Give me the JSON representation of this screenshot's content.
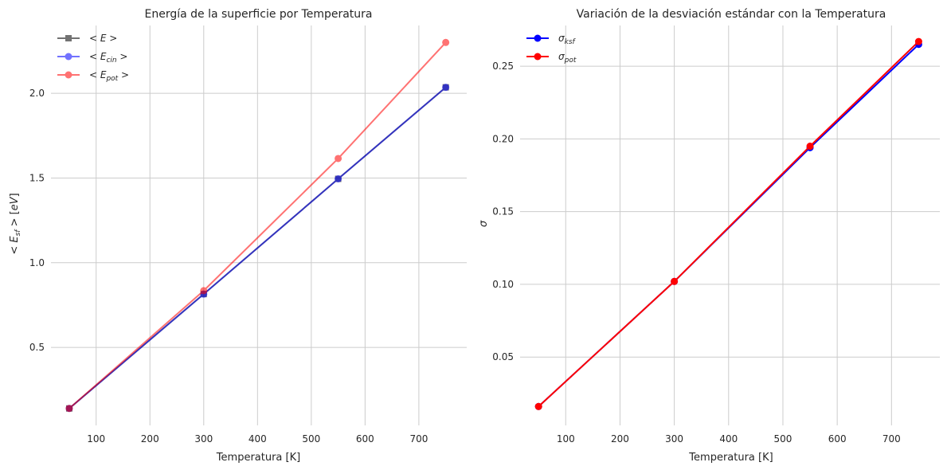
{
  "chart_data": [
    {
      "type": "line",
      "title": "Energía de la superficie por Temperatura",
      "xlabel": "Temperatura [K]",
      "ylabel": "< E_sf > [eV]",
      "xlim": [
        16,
        789
      ],
      "ylim": [
        0.04,
        2.4
      ],
      "grid": true,
      "legend_position": "top-left",
      "x_ticks": [
        100,
        200,
        300,
        400,
        500,
        600,
        700
      ],
      "y_ticks": [
        0.5,
        1.0,
        1.5,
        2.0
      ],
      "x_tick_labels": [
        "100",
        "200",
        "300",
        "400",
        "500",
        "600",
        "700"
      ],
      "y_tick_labels": [
        "0.5",
        "1.0",
        "1.5",
        "2.0"
      ],
      "x": [
        50,
        300,
        550,
        750
      ],
      "series": [
        {
          "name": "< E >",
          "legend_base": "< E",
          "legend_sub": "",
          "legend_tail": " >",
          "values": [
            0.14,
            0.815,
            1.495,
            2.035
          ],
          "color": "#000000",
          "marker": "square",
          "opacity": 0.55
        },
        {
          "name": "< E_cin >",
          "legend_base": "< E",
          "legend_sub": "cin",
          "legend_tail": " >",
          "values": [
            0.14,
            0.815,
            1.495,
            2.035
          ],
          "color": "#0000ff",
          "marker": "circle",
          "opacity": 0.55
        },
        {
          "name": "< E_pot >",
          "legend_base": "< E",
          "legend_sub": "pot",
          "legend_tail": " >",
          "values": [
            0.14,
            0.835,
            1.615,
            2.3
          ],
          "color": "#ff0000",
          "marker": "circle",
          "opacity": 0.55
        }
      ]
    },
    {
      "type": "line",
      "title": "Variación de la desviación estándar con la Temperatura",
      "xlabel": "Temperatura [K]",
      "ylabel": "σ",
      "xlim": [
        16,
        789
      ],
      "ylim": [
        0.003,
        0.278
      ],
      "grid": true,
      "legend_position": "top-left",
      "x_ticks": [
        100,
        200,
        300,
        400,
        500,
        600,
        700
      ],
      "y_ticks": [
        0.05,
        0.1,
        0.15,
        0.2,
        0.25
      ],
      "x_tick_labels": [
        "100",
        "200",
        "300",
        "400",
        "500",
        "600",
        "700"
      ],
      "y_tick_labels": [
        "0.05",
        "0.10",
        "0.15",
        "0.20",
        "0.25"
      ],
      "x": [
        50,
        300,
        550,
        750
      ],
      "series": [
        {
          "name": "σ_ksf",
          "legend_base": "σ",
          "legend_sub": "ksf",
          "legend_tail": "",
          "values": [
            0.016,
            0.102,
            0.194,
            0.265
          ],
          "color": "#0000ff",
          "marker": "circle",
          "opacity": 1
        },
        {
          "name": "σ_pot",
          "legend_base": "σ",
          "legend_sub": "pot",
          "legend_tail": "",
          "values": [
            0.016,
            0.102,
            0.195,
            0.267
          ],
          "color": "#ff0000",
          "marker": "circle",
          "opacity": 1
        }
      ]
    }
  ]
}
